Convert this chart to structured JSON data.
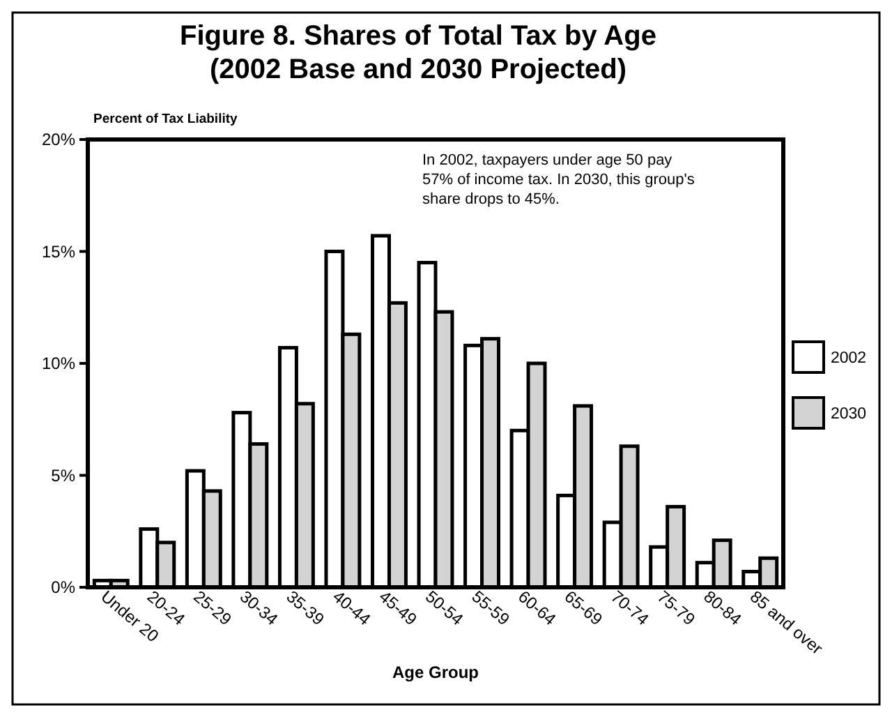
{
  "chart_data": {
    "type": "bar",
    "title": "Figure 8. Shares of Total Tax by Age\n(2002 Base and 2030 Projected)",
    "ylabel": "Percent of Tax Liability",
    "xlabel": "Age Group",
    "categories": [
      "Under 20",
      "20-24",
      "25-29",
      "30-34",
      "35-39",
      "40-44",
      "45-49",
      "50-54",
      "55-59",
      "60-64",
      "65-69",
      "70-74",
      "75-79",
      "80-84",
      "85 and over"
    ],
    "series": [
      {
        "name": "2002",
        "color": "#ffffff",
        "values": [
          0.3,
          2.6,
          5.2,
          7.8,
          10.7,
          15.0,
          15.7,
          14.5,
          10.8,
          7.0,
          4.1,
          2.9,
          1.8,
          1.1,
          0.7
        ]
      },
      {
        "name": "2030",
        "color": "#d3d3d3",
        "values": [
          0.3,
          2.0,
          4.3,
          6.4,
          8.2,
          11.3,
          12.7,
          12.3,
          11.1,
          10.0,
          8.1,
          6.3,
          3.6,
          2.1,
          1.3
        ]
      }
    ],
    "ylim": [
      0,
      20
    ],
    "yticks": [
      {
        "value": 0,
        "label": "0%"
      },
      {
        "value": 5,
        "label": "5%"
      },
      {
        "value": 10,
        "label": "10%"
      },
      {
        "value": 15,
        "label": "15%"
      },
      {
        "value": 20,
        "label": "20%"
      }
    ],
    "annotations": [
      "In 2002, taxpayers under age 50 pay\n57% of income tax. In 2030, this group's\nshare drops to 45%."
    ],
    "legend": "right",
    "grid": false
  }
}
